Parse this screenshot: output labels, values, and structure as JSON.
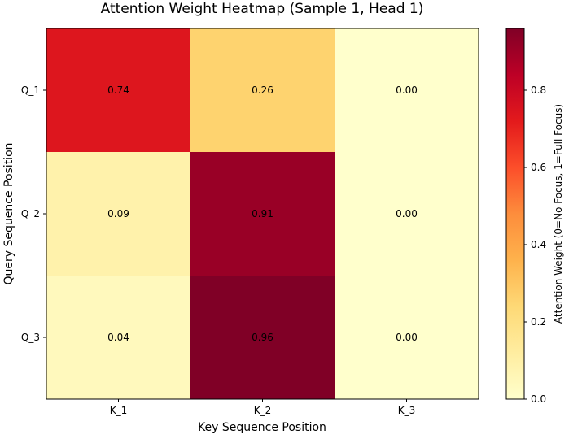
{
  "chart_data": {
    "type": "heatmap",
    "title": "Attention Weight Heatmap (Sample 1, Head 1)",
    "xlabel": "Key Sequence Position",
    "ylabel": "Query Sequence Position",
    "x_categories": [
      "K_1",
      "K_2",
      "K_3"
    ],
    "y_categories": [
      "Q_1",
      "Q_2",
      "Q_3"
    ],
    "values": [
      [
        0.74,
        0.26,
        0.0
      ],
      [
        0.09,
        0.91,
        0.0
      ],
      [
        0.04,
        0.96,
        0.0
      ]
    ],
    "cell_labels": [
      [
        "0.74",
        "0.26",
        "0.00"
      ],
      [
        "0.09",
        "0.91",
        "0.00"
      ],
      [
        "0.04",
        "0.96",
        "0.00"
      ]
    ],
    "colormap": "YlOrRd",
    "colorbar": {
      "label": "Attention Weight (0=No Focus, 1=Full Focus)",
      "range": [
        0,
        0.96
      ],
      "ticks": [
        0.0,
        0.2,
        0.4,
        0.6,
        0.8
      ],
      "tick_labels": [
        "0.0",
        "0.2",
        "0.4",
        "0.6",
        "0.8"
      ],
      "placement": "right"
    },
    "grid": false
  }
}
